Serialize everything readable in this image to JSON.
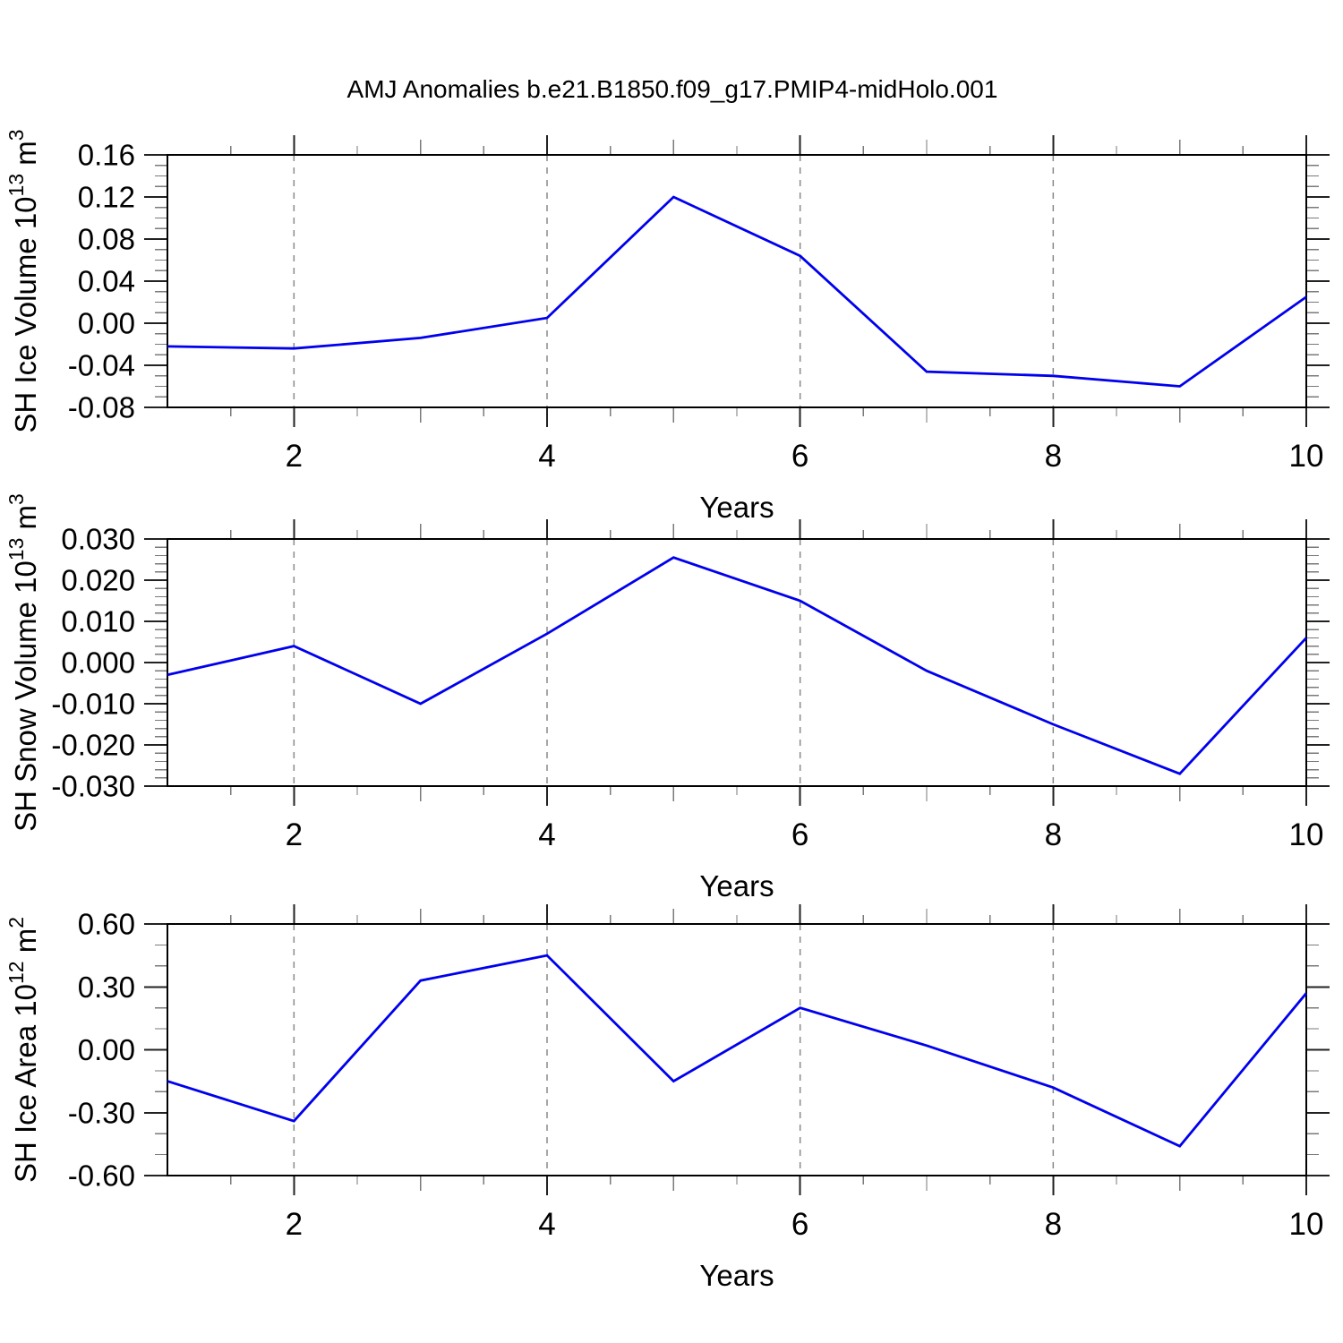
{
  "title": "AMJ Anomalies b.e21.B1850.f09_g17.PMIP4-midHolo.001",
  "colors": {
    "line": "#0000ee",
    "grid": "#8a8a8a",
    "frame": "#000000",
    "major_tick": "#222222",
    "minor_tick": "#7a7a7a",
    "text": "#000000"
  },
  "chart_data": [
    {
      "type": "line",
      "title": "",
      "x": [
        1,
        2,
        3,
        4,
        5,
        6,
        7,
        8,
        9,
        10
      ],
      "values": [
        -0.022,
        -0.024,
        -0.014,
        0.005,
        0.12,
        0.064,
        -0.046,
        -0.05,
        -0.06,
        0.025
      ],
      "xlabel": "Years",
      "ylabel": "SH Ice Volume 10^13 m^3",
      "ylabel_parts": [
        {
          "t": "SH Ice Volume 10"
        },
        {
          "sup": "13"
        },
        {
          "t": " m"
        },
        {
          "sup": "3"
        }
      ],
      "xlim": [
        1,
        10
      ],
      "ylim": [
        -0.08,
        0.16
      ],
      "ytick_values": [
        0.16,
        0.12,
        0.08,
        0.04,
        0.0,
        -0.04,
        -0.08
      ],
      "ytick_labels": [
        "0.16",
        "0.12",
        "0.08",
        "0.04",
        "0.00",
        "-0.04",
        "-0.08"
      ],
      "y_minor_step": 0.01,
      "xtick_values": [
        2,
        4,
        6,
        8,
        10
      ],
      "xtick_labels": [
        "2",
        "4",
        "6",
        "8",
        "10"
      ],
      "x_minor_step": 0.5,
      "grid_x": [
        2,
        4,
        6,
        8
      ],
      "grid_style": "dashed",
      "legend": "none"
    },
    {
      "type": "line",
      "title": "",
      "x": [
        1,
        2,
        3,
        4,
        5,
        6,
        7,
        8,
        9,
        10
      ],
      "values": [
        -0.003,
        0.004,
        -0.01,
        0.007,
        0.0255,
        0.015,
        -0.002,
        -0.015,
        -0.027,
        0.006
      ],
      "xlabel": "Years",
      "ylabel": "SH Snow Volume 10^13 m^3",
      "ylabel_parts": [
        {
          "t": "SH Snow Volume 10"
        },
        {
          "sup": "13"
        },
        {
          "t": " m"
        },
        {
          "sup": "3"
        }
      ],
      "xlim": [
        1,
        10
      ],
      "ylim": [
        -0.03,
        0.03
      ],
      "ytick_values": [
        0.03,
        0.02,
        0.01,
        0.0,
        -0.01,
        -0.02,
        -0.03
      ],
      "ytick_labels": [
        "0.030",
        "0.020",
        "0.010",
        "0.000",
        "-0.010",
        "-0.020",
        "-0.030"
      ],
      "y_minor_step": 0.002,
      "xtick_values": [
        2,
        4,
        6,
        8,
        10
      ],
      "xtick_labels": [
        "2",
        "4",
        "6",
        "8",
        "10"
      ],
      "x_minor_step": 0.5,
      "grid_x": [
        2,
        4,
        6,
        8
      ],
      "grid_style": "dashed",
      "legend": "none"
    },
    {
      "type": "line",
      "title": "",
      "x": [
        1,
        2,
        3,
        4,
        5,
        6,
        7,
        8,
        9,
        10
      ],
      "values": [
        -0.15,
        -0.34,
        0.33,
        0.45,
        -0.15,
        0.2,
        0.02,
        -0.18,
        -0.46,
        0.27
      ],
      "xlabel": "Years",
      "ylabel": "SH Ice Area 10^12 m^2",
      "ylabel_parts": [
        {
          "t": "SH Ice Area 10"
        },
        {
          "sup": "12"
        },
        {
          "t": " m"
        },
        {
          "sup": "2"
        }
      ],
      "xlim": [
        1,
        10
      ],
      "ylim": [
        -0.6,
        0.6
      ],
      "ytick_values": [
        0.6,
        0.3,
        0.0,
        -0.3,
        -0.6
      ],
      "ytick_labels": [
        "0.60",
        "0.30",
        "0.00",
        "-0.30",
        "-0.60"
      ],
      "y_minor_step": 0.1,
      "xtick_values": [
        2,
        4,
        6,
        8,
        10
      ],
      "xtick_labels": [
        "2",
        "4",
        "6",
        "8",
        "10"
      ],
      "x_minor_step": 0.5,
      "grid_x": [
        2,
        4,
        6,
        8
      ],
      "grid_style": "dashed",
      "legend": "none"
    }
  ]
}
